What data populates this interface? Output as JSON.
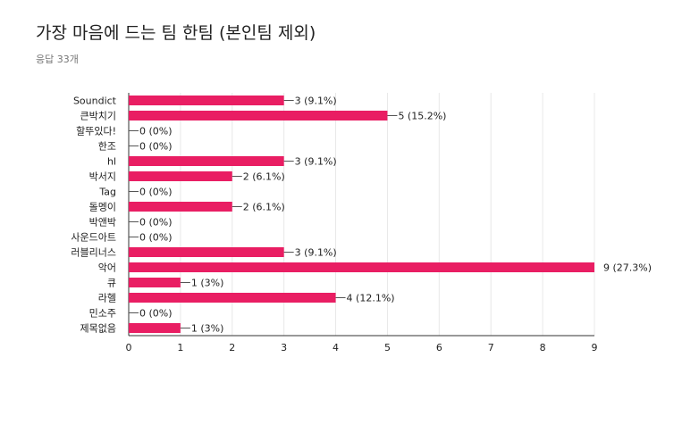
{
  "title": "가장 마음에 드는 팀 한팀 (본인팀 제외)",
  "subtitle": "응답 33개",
  "colors": {
    "bar": "#e91e63",
    "grid": "#e8e8e8",
    "axis": "#333333",
    "text": "#212121"
  },
  "chart_data": {
    "type": "bar",
    "orientation": "horizontal",
    "categories": [
      "Soundict",
      "큰박치기",
      "할뚜있다!",
      "한조",
      "hl",
      "박서지",
      "Tag",
      "돌멩이",
      "박앤박",
      "사운드아트",
      "러블리너스",
      "악어",
      "큐",
      "라헬",
      "민소주",
      "제목없음"
    ],
    "values": [
      3,
      5,
      0,
      0,
      3,
      2,
      0,
      2,
      0,
      0,
      3,
      9,
      1,
      4,
      0,
      1
    ],
    "data_labels": [
      "3 (9.1%)",
      "5 (15.2%)",
      "0 (0%)",
      "0 (0%)",
      "3 (9.1%)",
      "2 (6.1%)",
      "0 (0%)",
      "2 (6.1%)",
      "0 (0%)",
      "0 (0%)",
      "3 (9.1%)",
      "9 (27.3%)",
      "1 (3%)",
      "4 (12.1%)",
      "0 (0%)",
      "1 (3%)"
    ],
    "xlim": [
      0,
      9
    ],
    "xticks": [
      0,
      1,
      2,
      3,
      4,
      5,
      6,
      7,
      8,
      9
    ],
    "grid": true,
    "legend": false
  }
}
